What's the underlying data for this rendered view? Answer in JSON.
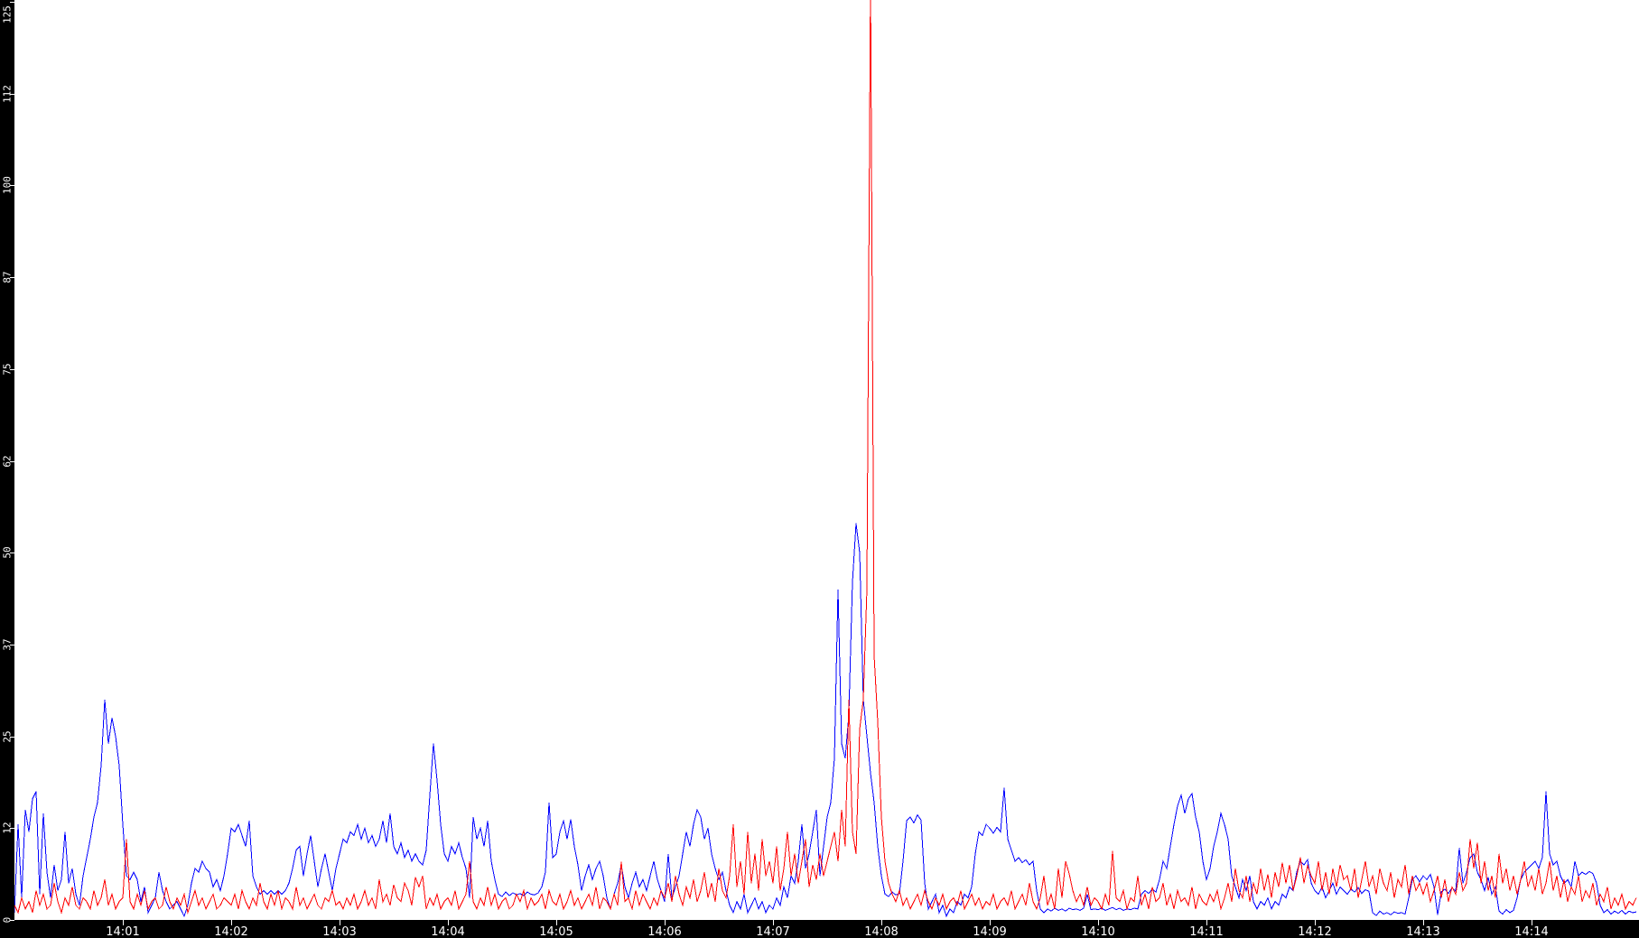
{
  "colors": {
    "background": "#ffffff",
    "axis_bar": "#000000",
    "tick_text": "#ffffff",
    "series_blue": "#0000ff",
    "series_red": "#ff0000"
  },
  "chart_data": {
    "type": "line",
    "title": "",
    "xlabel": "",
    "ylabel": "",
    "grid": false,
    "legend": "none",
    "x_axis": {
      "tick_labels": [
        "14:01",
        "14:02",
        "14:03",
        "14:04",
        "14:05",
        "14:06",
        "14:07",
        "14:08",
        "14:09",
        "14:10",
        "14:11",
        "14:12",
        "14:13",
        "14:14"
      ],
      "first_label_at_minute": 1,
      "x_range_minutes": 15
    },
    "y_axis": {
      "tick_labels": [
        "0",
        "12",
        "25",
        "37",
        "50",
        "62",
        "75",
        "87",
        "100",
        "112",
        "125"
      ],
      "ylim": [
        0,
        125
      ]
    },
    "seconds_per_point": 2,
    "series": [
      {
        "name": "blue",
        "color": "#0000ff",
        "values": [
          1,
          13,
          3,
          15,
          12,
          16.5,
          17.5,
          3.5,
          14.5,
          6.5,
          3,
          7.5,
          4,
          5.5,
          12,
          5,
          7,
          3.5,
          2,
          6,
          8.5,
          11,
          14,
          16,
          21,
          30,
          24,
          27.5,
          25,
          21,
          13,
          6,
          5.5,
          6.5,
          5.5,
          2.5,
          4.5,
          1,
          2,
          3,
          6.5,
          4,
          2.5,
          1.5,
          2,
          2.5,
          1.5,
          0.5,
          2,
          5,
          7,
          6.5,
          8,
          7,
          6.5,
          4.5,
          5.5,
          4,
          6,
          9,
          12.5,
          12,
          13,
          11.5,
          10,
          13.5,
          6,
          4.5,
          3.5,
          4,
          3.5,
          4,
          3.5,
          4,
          3.5,
          4,
          5,
          7,
          9.5,
          10,
          6,
          9,
          11.5,
          8,
          4.5,
          7,
          9,
          6.5,
          4,
          7,
          9,
          11,
          10.5,
          12,
          11.5,
          13,
          11,
          12.5,
          10.5,
          11.5,
          10,
          11,
          13.5,
          10.5,
          14.5,
          10,
          9,
          10.5,
          8.5,
          9.5,
          8,
          9,
          8,
          7.5,
          9.5,
          17,
          24,
          19,
          13,
          9,
          8,
          10,
          9,
          10.5,
          8.5,
          7,
          3,
          14,
          11,
          12.5,
          10,
          13.5,
          8,
          5.5,
          3.5,
          3.2,
          3.8,
          3.3,
          3.7,
          3.4,
          3.6,
          3.3,
          3.8,
          3.5,
          3.4,
          3.7,
          4.5,
          6.5,
          16,
          8.5,
          9,
          12,
          13.5,
          11,
          13.7,
          10,
          7.5,
          4,
          6,
          7.5,
          5.5,
          7,
          8,
          6,
          3,
          1.5,
          3.5,
          5,
          7.5,
          4.5,
          3,
          5,
          6.5,
          4.5,
          5.5,
          4,
          6,
          8,
          5.5,
          4,
          2.5,
          9,
          3,
          4.5,
          6,
          9,
          12,
          10,
          13,
          15,
          14,
          11,
          12.5,
          9,
          7,
          5.5,
          6.5,
          4,
          2,
          1,
          2.5,
          1.5,
          3.5,
          1,
          2,
          3,
          1.5,
          2.5,
          1,
          2,
          1.5,
          3,
          2,
          4.5,
          3,
          6,
          5,
          8,
          13,
          7,
          9,
          12,
          15,
          6,
          10,
          14,
          16,
          22,
          45,
          24,
          22,
          28,
          46,
          54,
          50,
          30,
          25,
          20,
          16,
          10,
          6,
          3.5,
          3.2,
          3.8,
          3.4,
          3.6,
          8,
          13.5,
          14,
          13.2,
          14.3,
          13.6,
          5,
          1.5,
          2.5,
          3.5,
          1,
          2,
          0.5,
          1.5,
          1,
          2.5,
          2,
          3.5,
          3,
          4.5,
          9,
          12,
          11.5,
          13,
          12.5,
          11.8,
          12.6,
          12,
          18,
          11,
          9.5,
          8,
          8.5,
          7.8,
          8.2,
          7.5,
          8,
          4,
          1.5,
          1,
          1.5,
          1.2,
          1.6,
          1.3,
          1.5,
          1.2,
          1.6,
          1.4,
          1.5,
          1.3,
          1.6,
          3.5,
          1.4,
          1.5,
          1.4,
          1.6,
          1.3,
          1.5,
          1.7,
          1.4,
          1.6,
          1.3,
          1.5,
          1.4,
          1.6,
          1.5,
          3.5,
          4,
          3.6,
          4.2,
          3.8,
          5.5,
          8,
          7,
          10,
          13,
          15.5,
          17,
          14.5,
          16.5,
          17.2,
          14,
          12,
          8,
          5.5,
          7,
          10,
          12,
          14.5,
          13,
          11,
          6,
          4.5,
          3,
          5.5,
          4,
          6,
          2.5,
          1.5,
          2.5,
          2,
          3,
          1.5,
          2.5,
          2,
          3.5,
          3,
          4.5,
          4,
          6.5,
          8,
          7.5,
          8.2,
          5,
          4,
          3.5,
          4.5,
          3,
          4,
          5,
          3.5,
          4.5,
          4,
          3.5,
          4.2,
          3.8,
          4.4,
          3.6,
          4.1,
          3.9,
          1,
          0.6,
          1.2,
          0.8,
          1,
          0.7,
          1.1,
          0.9,
          1,
          0.8,
          3,
          5.5,
          6,
          5.2,
          6,
          5.5,
          6.2,
          4.5,
          0.7,
          3.8,
          4.2,
          3.6,
          4.4,
          3.9,
          9.8,
          5,
          6.5,
          8.5,
          9,
          6.5,
          5.5,
          4,
          5.8,
          3.5,
          4.5,
          1.2,
          0.8,
          1.4,
          1,
          1.3,
          3,
          5.5,
          6.5,
          7,
          7.5,
          8,
          7,
          8.5,
          17.5,
          9,
          7.5,
          8,
          6,
          5,
          5.5,
          4.5,
          8,
          6,
          6.5,
          6.2,
          6.6,
          6.3,
          5,
          2,
          1,
          1.4,
          0.8,
          1.2,
          0.9,
          1.3,
          0.8,
          1.2,
          1,
          1.1
        ]
      },
      {
        "name": "red",
        "color": "#ff0000",
        "values": [
          2,
          1,
          3,
          1.5,
          2.5,
          1,
          4,
          2,
          3.5,
          1.5,
          2,
          5,
          2.5,
          1,
          3,
          2,
          4.5,
          2,
          1.5,
          3,
          2.5,
          1.5,
          4,
          2,
          3,
          5.5,
          2,
          3.5,
          1.5,
          2.5,
          3,
          11,
          2.5,
          1.5,
          3.5,
          2,
          4,
          1.5,
          2.5,
          3,
          1.5,
          2,
          4.5,
          2.5,
          1.5,
          3,
          2,
          3.5,
          1,
          2.5,
          4,
          2,
          3,
          1.5,
          2.5,
          3.5,
          1.5,
          2,
          3,
          2.5,
          2,
          3.5,
          1.5,
          4,
          2.5,
          1.5,
          3,
          2,
          5,
          2.5,
          1.5,
          3.5,
          2,
          4,
          1.5,
          3,
          2.5,
          1.5,
          4.5,
          2,
          3,
          1.5,
          2.5,
          3.5,
          2,
          1.5,
          3,
          2.5,
          4,
          2,
          2.5,
          1.5,
          3,
          2,
          3.5,
          1.5,
          2.5,
          4,
          2,
          3,
          1.5,
          5.5,
          2.5,
          3.5,
          2,
          4.8,
          3,
          2.5,
          5,
          4,
          2,
          5.8,
          4.5,
          6,
          1.5,
          3,
          2,
          3.5,
          1.5,
          2.5,
          3,
          2,
          4,
          1.5,
          2.5,
          3.5,
          8,
          2.5,
          1.5,
          3,
          2,
          4.5,
          2,
          3.5,
          1.5,
          2.5,
          3,
          1.5,
          2,
          3.5,
          2.5,
          4,
          1.5,
          3,
          2,
          2.5,
          3.5,
          1.5,
          4,
          2.5,
          2,
          3.5,
          1.5,
          2.5,
          4,
          2,
          3,
          1.5,
          2.5,
          3.5,
          2,
          4.5,
          1.5,
          3,
          2.5,
          1.5,
          3.5,
          2,
          7.9,
          2.5,
          3,
          1.5,
          4,
          2,
          3.5,
          2.5,
          1.5,
          3,
          2,
          4,
          3,
          5,
          2.5,
          6,
          3.5,
          2,
          4.5,
          3,
          5.5,
          2.5,
          4,
          6.5,
          3,
          5,
          2.5,
          7,
          4,
          3,
          6,
          13,
          4.5,
          8,
          3.5,
          12,
          5,
          9,
          4,
          11,
          6,
          8,
          5,
          10,
          4,
          7,
          12,
          6,
          9,
          5,
          8,
          11,
          4.5,
          7.5,
          5.5,
          9,
          6,
          8,
          10,
          12,
          8,
          15,
          10,
          30,
          12,
          9,
          26,
          30,
          45,
          128,
          36,
          27,
          14,
          8,
          5,
          3.5,
          2.5,
          4,
          2,
          3,
          1.5,
          2.5,
          3.5,
          2,
          4,
          2.5,
          1.5,
          3,
          2,
          3.5,
          1.5,
          2.5,
          3,
          2,
          4,
          1.5,
          2.5,
          3.5,
          2,
          3,
          1.5,
          2.5,
          2,
          3.5,
          1.5,
          2.5,
          3,
          2,
          4,
          1.5,
          2.5,
          3.5,
          2,
          5,
          2.5,
          1.5,
          3,
          6,
          2,
          3.5,
          1.5,
          7,
          3,
          8,
          6.3,
          4,
          2.5,
          3.5,
          2,
          4.5,
          2,
          3,
          2.5,
          1.5,
          3.5,
          2,
          9.4,
          3,
          2.5,
          4,
          1.5,
          3,
          2.5,
          6,
          2,
          3.5,
          1.5,
          4.5,
          2.5,
          3,
          5,
          2,
          3.5,
          1.5,
          4,
          2.5,
          3,
          2,
          4.5,
          1.5,
          3.5,
          2.5,
          2,
          3.5,
          2.5,
          4,
          1.5,
          3,
          5,
          2.5,
          7,
          4,
          3,
          6,
          2.5,
          5,
          3.5,
          7,
          4,
          6.2,
          3,
          6.5,
          4.5,
          7.8,
          5,
          7.5,
          4,
          6,
          8.5,
          5,
          7.4,
          6,
          5,
          8,
          4,
          6.5,
          3.5,
          7,
          4.5,
          7.5,
          5.5,
          6,
          4,
          7,
          3,
          5.5,
          8,
          4.5,
          6,
          3.5,
          7,
          5,
          4,
          6.5,
          3,
          5.5,
          4.5,
          7.5,
          3.5,
          6,
          4,
          5,
          3.5,
          5,
          2.5,
          4,
          6,
          3,
          5.5,
          2.5,
          4.5,
          3.5,
          6.5,
          4,
          5,
          11,
          7,
          10.5,
          5,
          8,
          4,
          6,
          3,
          9,
          5,
          7,
          4,
          6,
          3.5,
          5.5,
          8,
          4.5,
          6,
          4,
          7,
          3.5,
          5,
          8,
          4,
          6,
          3,
          5.5,
          2.5,
          4.5,
          3.5,
          6,
          2.5,
          4,
          3,
          5,
          2,
          3.5,
          2.5,
          4.5,
          1.5,
          3,
          2,
          3.5,
          1.5,
          2.5,
          2,
          3
        ]
      }
    ]
  }
}
